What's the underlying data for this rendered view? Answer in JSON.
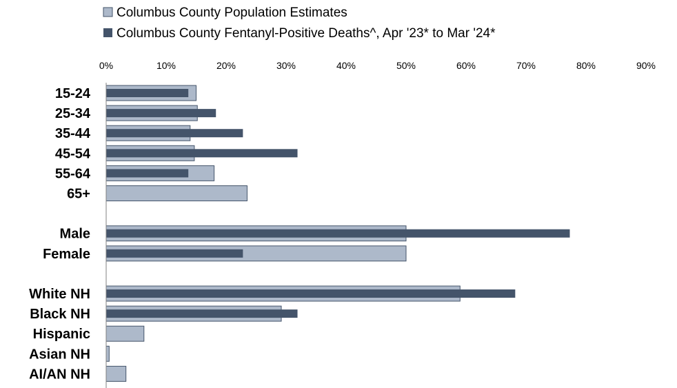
{
  "chart_data": {
    "type": "bar",
    "orientation": "horizontal",
    "grid": false,
    "legend_position": "top-left",
    "colors": {
      "population": "#adb9ca",
      "population_border": "#44546a",
      "deaths": "#44546a"
    },
    "xlim": [
      0,
      90
    ],
    "x_ticks": [
      "0%",
      "10%",
      "20%",
      "30%",
      "40%",
      "50%",
      "60%",
      "70%",
      "80%",
      "90%"
    ],
    "categories": [
      "15-24",
      "25-34",
      "35-44",
      "45-54",
      "55-64",
      "65+",
      "Male",
      "Female",
      "White NH",
      "Black NH",
      "Hispanic",
      "Asian NH",
      "AI/AN NH"
    ],
    "groups": [
      [
        "15-24",
        "25-34",
        "35-44",
        "45-54",
        "55-64",
        "65+"
      ],
      [
        "Male",
        "Female"
      ],
      [
        "White NH",
        "Black NH",
        "Hispanic",
        "Asian NH",
        "AI/AN NH"
      ]
    ],
    "series": [
      {
        "name": "Columbus County Population Estimates",
        "values": [
          15.0,
          15.2,
          14.0,
          14.7,
          18.0,
          23.5,
          50.0,
          50.0,
          59.0,
          29.2,
          6.3,
          0.5,
          3.3
        ]
      },
      {
        "name": "Columbus County Fentanyl-Positive Deaths^, Apr '23* to Mar '24*",
        "values": [
          13.7,
          18.3,
          22.8,
          31.9,
          13.7,
          0,
          77.3,
          22.8,
          68.2,
          31.9,
          0,
          0,
          0
        ]
      }
    ]
  }
}
